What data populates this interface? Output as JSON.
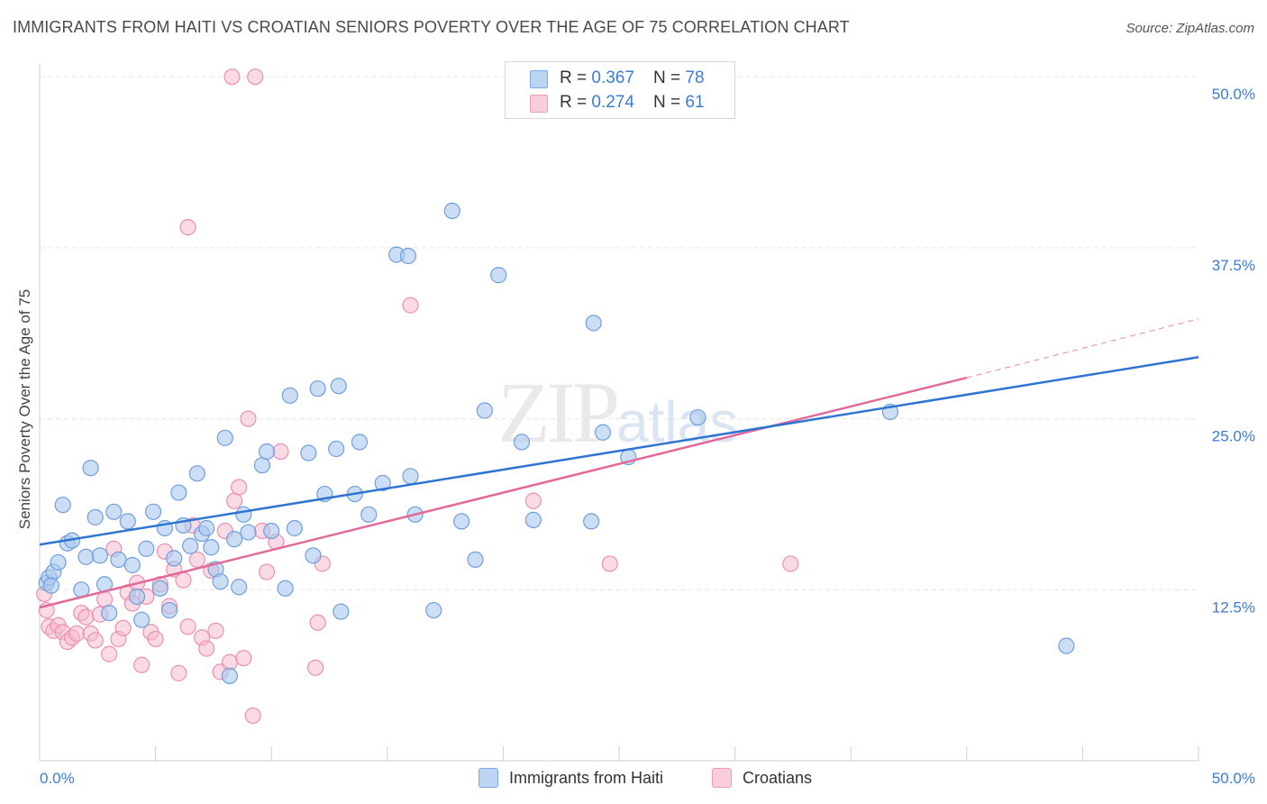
{
  "header": {
    "title": "IMMIGRANTS FROM HAITI VS CROATIAN SENIORS POVERTY OVER THE AGE OF 75 CORRELATION CHART",
    "source": "Source: ZipAtlas.com"
  },
  "watermark": {
    "zip": "ZIP",
    "atlas": "atlas"
  },
  "legend": {
    "series1": {
      "r_label": "R = ",
      "r_value": "0.367",
      "n_label": "N = ",
      "n_value": "78"
    },
    "series2": {
      "r_label": "R = ",
      "r_value": "0.274",
      "n_label": "N = ",
      "n_value": "61"
    }
  },
  "bottom_legend": {
    "series1": "Immigrants from Haiti",
    "series2": "Croatians"
  },
  "colors": {
    "blue_fill": "#a9c8ef",
    "blue_stroke": "#6f9fdc",
    "blue_line": "#2f74d0",
    "pink_fill": "#f6bcd0",
    "pink_stroke": "#ec8fb0",
    "pink_line": "#e2699a",
    "accent_text": "#3d7bd3",
    "grid": "#e6e6e6"
  },
  "chart_data": {
    "type": "scatter",
    "title": "IMMIGRANTS FROM HAITI VS CROATIAN SENIORS POVERTY OVER THE AGE OF 75 CORRELATION CHART",
    "xlabel": "",
    "ylabel": "Seniors Poverty Over the Age of 75",
    "xlim": [
      0,
      50
    ],
    "ylim": [
      0,
      51
    ],
    "x_tick_labels": [
      "0.0%",
      "50.0%"
    ],
    "y_ticks": [
      12.5,
      25.0,
      37.5,
      50.0
    ],
    "y_tick_labels": [
      "12.5%",
      "25.0%",
      "37.5%",
      "50.0%"
    ],
    "series": [
      {
        "name": "Immigrants from Haiti",
        "color": "#a9c8ef",
        "R": 0.367,
        "N": 78,
        "trend": {
          "x": [
            0,
            50
          ],
          "y": [
            15.8,
            29.5
          ],
          "dashed_extension": false
        },
        "points": [
          [
            0.3,
            13.0
          ],
          [
            0.4,
            13.4
          ],
          [
            0.6,
            13.8
          ],
          [
            0.8,
            14.5
          ],
          [
            1.0,
            18.7
          ],
          [
            1.2,
            15.9
          ],
          [
            1.4,
            16.1
          ],
          [
            1.8,
            12.5
          ],
          [
            2.0,
            14.9
          ],
          [
            2.2,
            21.4
          ],
          [
            2.4,
            17.8
          ],
          [
            2.6,
            15.0
          ],
          [
            2.8,
            12.9
          ],
          [
            3.0,
            10.8
          ],
          [
            3.2,
            18.2
          ],
          [
            3.4,
            14.7
          ],
          [
            3.8,
            17.5
          ],
          [
            4.0,
            14.3
          ],
          [
            4.2,
            12.0
          ],
          [
            4.4,
            10.3
          ],
          [
            4.6,
            15.5
          ],
          [
            4.9,
            18.2
          ],
          [
            5.2,
            12.6
          ],
          [
            5.4,
            17.0
          ],
          [
            5.6,
            11.0
          ],
          [
            5.8,
            14.8
          ],
          [
            6.0,
            19.6
          ],
          [
            6.2,
            17.2
          ],
          [
            6.5,
            15.7
          ],
          [
            6.8,
            21.0
          ],
          [
            7.0,
            16.6
          ],
          [
            7.2,
            17.0
          ],
          [
            7.4,
            15.6
          ],
          [
            7.6,
            14.0
          ],
          [
            7.8,
            13.1
          ],
          [
            8.0,
            23.6
          ],
          [
            8.2,
            6.2
          ],
          [
            8.4,
            16.2
          ],
          [
            8.6,
            12.7
          ],
          [
            8.8,
            18.0
          ],
          [
            9.0,
            16.7
          ],
          [
            9.6,
            21.6
          ],
          [
            9.8,
            22.6
          ],
          [
            10.0,
            16.8
          ],
          [
            10.6,
            12.6
          ],
          [
            10.8,
            26.7
          ],
          [
            11.0,
            17.0
          ],
          [
            11.6,
            22.5
          ],
          [
            11.8,
            15.0
          ],
          [
            12.0,
            27.2
          ],
          [
            12.3,
            19.5
          ],
          [
            12.8,
            22.8
          ],
          [
            12.9,
            27.4
          ],
          [
            13.0,
            10.9
          ],
          [
            13.6,
            19.5
          ],
          [
            13.8,
            23.3
          ],
          [
            14.2,
            18.0
          ],
          [
            14.8,
            20.3
          ],
          [
            15.4,
            37.0
          ],
          [
            15.9,
            36.9
          ],
          [
            16.0,
            20.8
          ],
          [
            16.2,
            18.0
          ],
          [
            17.0,
            11.0
          ],
          [
            17.8,
            40.2
          ],
          [
            18.2,
            17.5
          ],
          [
            18.8,
            14.7
          ],
          [
            19.2,
            25.6
          ],
          [
            19.8,
            35.5
          ],
          [
            20.8,
            23.3
          ],
          [
            21.3,
            17.6
          ],
          [
            23.8,
            17.5
          ],
          [
            23.9,
            32.0
          ],
          [
            24.3,
            24.0
          ],
          [
            25.4,
            22.2
          ],
          [
            28.4,
            25.1
          ],
          [
            36.7,
            25.5
          ],
          [
            44.3,
            8.4
          ],
          [
            0.5,
            12.8
          ]
        ]
      },
      {
        "name": "Croatians",
        "color": "#f6bcd0",
        "R": 0.274,
        "N": 61,
        "trend": {
          "x": [
            0,
            40
          ],
          "y": [
            11.2,
            28.0
          ],
          "dashed_extension": true,
          "dashed_to": [
            50,
            32.3
          ]
        },
        "points": [
          [
            0.2,
            12.2
          ],
          [
            0.3,
            11.0
          ],
          [
            0.4,
            9.8
          ],
          [
            0.6,
            9.5
          ],
          [
            0.8,
            9.9
          ],
          [
            1.0,
            9.4
          ],
          [
            1.2,
            8.7
          ],
          [
            1.4,
            9.0
          ],
          [
            1.6,
            9.3
          ],
          [
            1.8,
            10.8
          ],
          [
            2.0,
            10.5
          ],
          [
            2.2,
            9.3
          ],
          [
            2.4,
            8.8
          ],
          [
            2.6,
            10.7
          ],
          [
            2.8,
            11.8
          ],
          [
            3.0,
            7.8
          ],
          [
            3.2,
            15.5
          ],
          [
            3.4,
            8.9
          ],
          [
            3.6,
            9.7
          ],
          [
            3.8,
            12.3
          ],
          [
            4.0,
            11.5
          ],
          [
            4.2,
            13.0
          ],
          [
            4.4,
            7.0
          ],
          [
            4.6,
            12.0
          ],
          [
            4.8,
            9.4
          ],
          [
            5.0,
            8.9
          ],
          [
            5.2,
            12.9
          ],
          [
            5.4,
            15.3
          ],
          [
            5.6,
            11.3
          ],
          [
            5.8,
            14.0
          ],
          [
            6.0,
            6.4
          ],
          [
            6.2,
            13.2
          ],
          [
            6.4,
            9.8
          ],
          [
            6.6,
            17.2
          ],
          [
            6.8,
            14.7
          ],
          [
            7.0,
            9.0
          ],
          [
            7.2,
            8.2
          ],
          [
            7.4,
            13.9
          ],
          [
            7.6,
            9.5
          ],
          [
            7.8,
            6.5
          ],
          [
            8.0,
            16.8
          ],
          [
            8.2,
            7.2
          ],
          [
            8.4,
            19.0
          ],
          [
            8.6,
            20.0
          ],
          [
            8.8,
            7.5
          ],
          [
            9.0,
            25.0
          ],
          [
            9.2,
            3.3
          ],
          [
            9.6,
            16.8
          ],
          [
            9.8,
            13.8
          ],
          [
            10.2,
            16.0
          ],
          [
            10.4,
            22.6
          ],
          [
            11.9,
            6.8
          ],
          [
            12.0,
            10.1
          ],
          [
            12.2,
            14.4
          ],
          [
            16.0,
            33.3
          ],
          [
            21.3,
            19.0
          ],
          [
            24.6,
            14.4
          ],
          [
            32.4,
            14.4
          ],
          [
            8.3,
            50.0
          ],
          [
            9.3,
            50.0
          ],
          [
            6.4,
            39.0
          ]
        ]
      }
    ]
  }
}
